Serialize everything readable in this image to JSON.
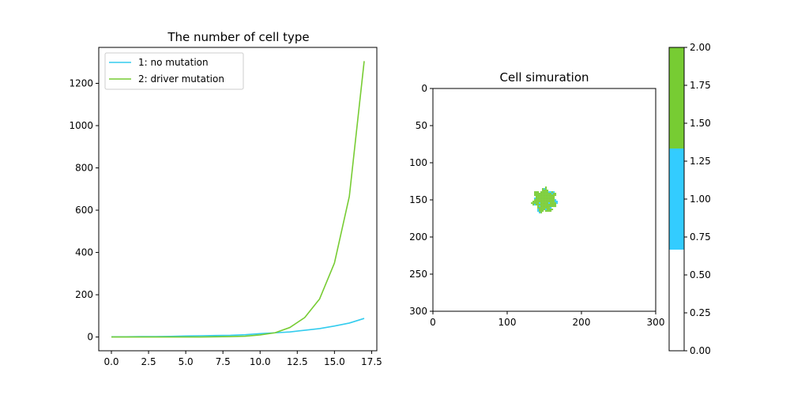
{
  "chart_data": [
    {
      "type": "line",
      "title": "The number of cell type",
      "xlabel": "",
      "ylabel": "",
      "xlim": [
        -0.85,
        17.85
      ],
      "ylim": [
        -65,
        1370
      ],
      "xticks": [
        0,
        2.5,
        5,
        7.5,
        10,
        12.5,
        15,
        17.5
      ],
      "xtick_labels": [
        "0.0",
        "2.5",
        "5.0",
        "7.5",
        "10.0",
        "12.5",
        "15.0",
        "17.5"
      ],
      "yticks": [
        0,
        200,
        400,
        600,
        800,
        1000,
        1200
      ],
      "ytick_labels": [
        "0",
        "200",
        "400",
        "600",
        "800",
        "1000",
        "1200"
      ],
      "grid": false,
      "legend_position": "upper-left",
      "x": [
        0,
        1,
        2,
        3,
        4,
        5,
        6,
        7,
        8,
        9,
        10,
        11,
        12,
        13,
        14,
        15,
        16,
        17
      ],
      "series": [
        {
          "name": "1: no mutation",
          "color": "#33ccee",
          "values": [
            1,
            1,
            2,
            2,
            3,
            5,
            6,
            7,
            8,
            11,
            16,
            20,
            24,
            32,
            40,
            52,
            66,
            88
          ]
        },
        {
          "name": "2: driver mutation",
          "color": "#77cc33",
          "values": [
            0,
            0,
            0,
            0,
            0,
            0,
            0,
            1,
            2,
            4,
            10,
            20,
            45,
            92,
            180,
            350,
            665,
            1305
          ]
        }
      ]
    },
    {
      "type": "heatmap",
      "title": "Cell simuration",
      "xlim": [
        0,
        300
      ],
      "ylim": [
        300,
        0
      ],
      "xticks": [
        0,
        100,
        200,
        300
      ],
      "xtick_labels": [
        "0",
        "100",
        "200",
        "300"
      ],
      "yticks": [
        0,
        50,
        100,
        150,
        200,
        250,
        300
      ],
      "ytick_labels": [
        "0",
        "50",
        "100",
        "150",
        "200",
        "250",
        "300"
      ],
      "description_values": "cell grid: 0 = empty, 1 = no mutation, 2 = driver mutation",
      "cluster": {
        "center_x": 150,
        "center_y": 150,
        "radius": 18,
        "dominant_value": 2
      },
      "colormap": [
        {
          "value": 0,
          "color": "#ffffff"
        },
        {
          "value": 1,
          "color": "#33ccff"
        },
        {
          "value": 2,
          "color": "#77cc33"
        }
      ],
      "colorbar": {
        "range": [
          0,
          2
        ],
        "ticks": [
          0,
          0.25,
          0.5,
          0.75,
          1.0,
          1.25,
          1.5,
          1.75,
          2.0
        ],
        "tick_labels": [
          "0.00",
          "0.25",
          "0.50",
          "0.75",
          "1.00",
          "1.25",
          "1.50",
          "1.75",
          "2.00"
        ]
      }
    }
  ]
}
